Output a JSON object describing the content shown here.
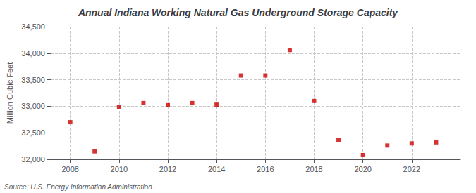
{
  "chart_data": {
    "type": "scatter",
    "title": "Annual Indiana Working Natural Gas Underground Storage Capacity",
    "ylabel": "Million Cubic Feet",
    "source": "Source: U.S. Energy Information Administration",
    "x": [
      2008,
      2009,
      2010,
      2011,
      2012,
      2013,
      2014,
      2015,
      2016,
      2017,
      2018,
      2019,
      2020,
      2021,
      2022,
      2023
    ],
    "values": [
      32700,
      32150,
      32980,
      33060,
      33020,
      33060,
      33030,
      33580,
      33580,
      34060,
      33100,
      32370,
      32080,
      32260,
      32300,
      32320
    ],
    "color": "#cc0000",
    "marker": "square",
    "xlim": [
      2007.2,
      2024.0
    ],
    "xticks": [
      2008,
      2010,
      2012,
      2014,
      2016,
      2018,
      2020,
      2022
    ],
    "ylim": [
      32000,
      34500
    ],
    "yticks": [
      {
        "value": 32000,
        "label": "32,000"
      },
      {
        "value": 32500,
        "label": "32,500"
      },
      {
        "value": 33000,
        "label": "33,000"
      },
      {
        "value": 33500,
        "label": "33,500"
      },
      {
        "value": 34000,
        "label": "34,000"
      },
      {
        "value": 34500,
        "label": "34,500"
      }
    ],
    "grid": true
  }
}
